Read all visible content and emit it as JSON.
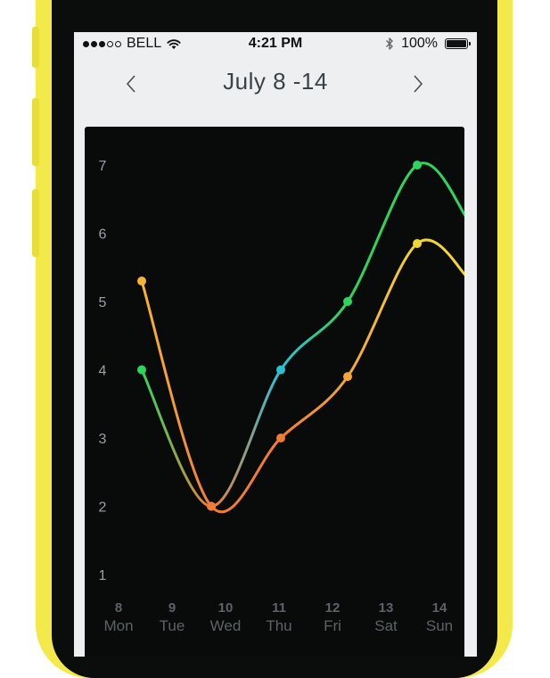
{
  "status_bar": {
    "carrier": "BELL",
    "signal_bars": 3,
    "signal_total": 5,
    "time": "4:21 PM",
    "battery": "100%",
    "battery_level": 1.0,
    "icons": [
      "wifi-icon",
      "bluetooth-icon",
      "battery-icon"
    ]
  },
  "nav": {
    "title": "July 8 -14",
    "prev_icon": "chevron-left-icon",
    "next_icon": "chevron-right-icon"
  },
  "chart_data": {
    "type": "line",
    "title": "",
    "xlabel": "",
    "ylabel": "",
    "categories": [
      {
        "day": "8",
        "weekday": "Mon"
      },
      {
        "day": "9",
        "weekday": "Tue"
      },
      {
        "day": "10",
        "weekday": "Wed"
      },
      {
        "day": "11",
        "weekday": "Thu"
      },
      {
        "day": "12",
        "weekday": "Fri"
      },
      {
        "day": "13",
        "weekday": "Sat"
      },
      {
        "day": "14",
        "weekday": "Sun"
      }
    ],
    "y_ticks": [
      "1",
      "2",
      "3",
      "4",
      "5",
      "6",
      "7"
    ],
    "ylim": [
      1,
      7
    ],
    "grid": false,
    "series": [
      {
        "color": "#2fd460",
        "points": [
          [
            0.2,
            4.0
          ],
          [
            1.5,
            2.0
          ],
          [
            2.8,
            4.0
          ],
          [
            4.05,
            5.0
          ],
          [
            5.35,
            7.0
          ],
          [
            6.3,
            6.2
          ]
        ]
      },
      {
        "color": "#f6b432",
        "points": [
          [
            0.2,
            5.3
          ],
          [
            1.5,
            2.0
          ],
          [
            2.8,
            3.0
          ],
          [
            4.05,
            3.9
          ],
          [
            5.35,
            5.85
          ],
          [
            6.3,
            5.35
          ]
        ]
      }
    ],
    "point_colors": [
      [
        "#2fd460",
        "#f07c35",
        "#2bbfd4",
        "#2fd460",
        "#2fd460"
      ],
      [
        "#f6b432",
        "#f07c35",
        "#f07c35",
        "#f6a534",
        "#f2d533"
      ]
    ]
  }
}
